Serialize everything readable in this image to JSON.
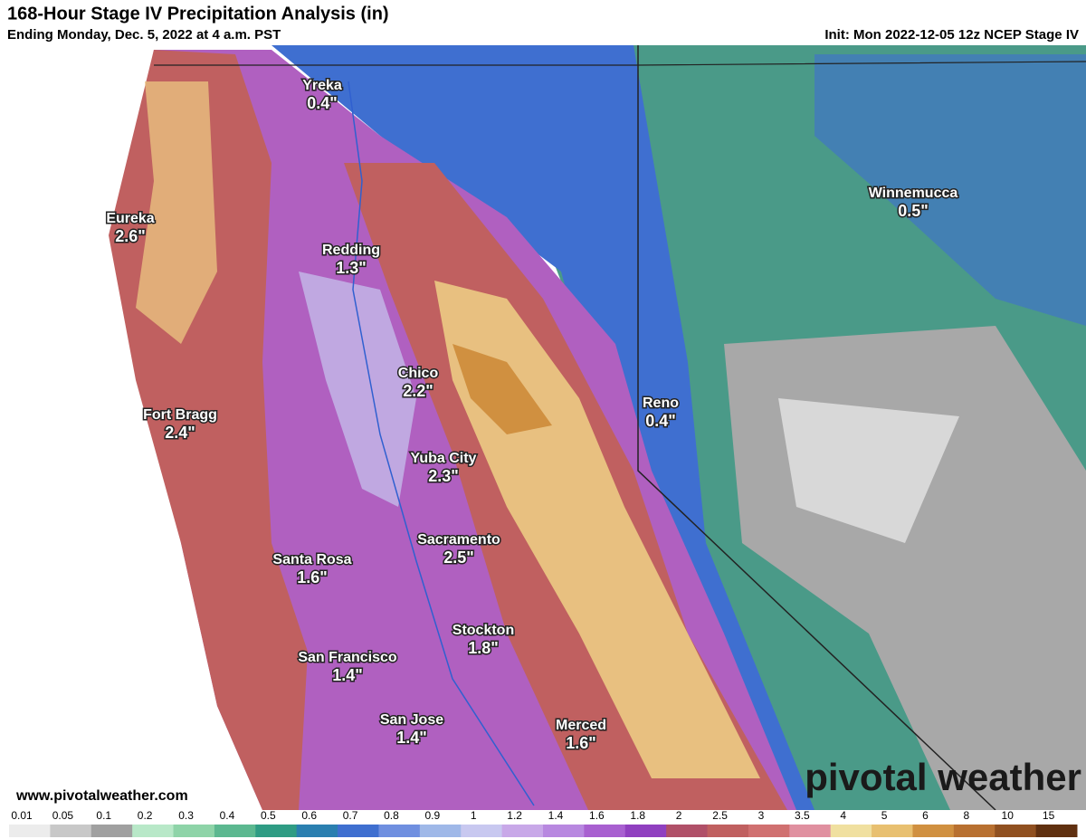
{
  "header": {
    "title": "168-Hour Stage IV Precipitation Analysis (in)",
    "subtitle": "Ending Monday, Dec. 5, 2022 at 4 a.m. PST",
    "init": "Init: Mon 2022-12-05 12z NCEP Stage IV"
  },
  "cities": [
    {
      "name": "Yreka",
      "value": "0.4\""
    },
    {
      "name": "Eureka",
      "value": "2.6\""
    },
    {
      "name": "Redding",
      "value": "1.3\""
    },
    {
      "name": "Winnemucca",
      "value": "0.5\""
    },
    {
      "name": "Chico",
      "value": "2.2\""
    },
    {
      "name": "Reno",
      "value": "0.4\""
    },
    {
      "name": "Fort Bragg",
      "value": "2.4\""
    },
    {
      "name": "Yuba City",
      "value": "2.3\""
    },
    {
      "name": "Sacramento",
      "value": "2.5\""
    },
    {
      "name": "Santa Rosa",
      "value": "1.6\""
    },
    {
      "name": "Stockton",
      "value": "1.8\""
    },
    {
      "name": "San Francisco",
      "value": "1.4\""
    },
    {
      "name": "San Jose",
      "value": "1.4\""
    },
    {
      "name": "Merced",
      "value": "1.6\""
    }
  ],
  "footer": {
    "website": "www.pivotalweather.com",
    "watermark": "pivotal weather"
  },
  "colorbar": {
    "labels": [
      "0.01",
      "0.05",
      "0.1",
      "0.2",
      "0.3",
      "0.4",
      "0.5",
      "0.6",
      "0.7",
      "0.8",
      "0.9",
      "1",
      "1.2",
      "1.4",
      "1.6",
      "1.8",
      "2",
      "2.5",
      "3",
      "3.5",
      "4",
      "5",
      "6",
      "8",
      "10",
      "15"
    ],
    "colors": [
      "#ececec",
      "#c8c8c8",
      "#a0a0a0",
      "#b8e8c8",
      "#8ed4a8",
      "#5cb890",
      "#2f9c84",
      "#2a7fb0",
      "#3f6fd0",
      "#6f8fe0",
      "#9fb8e8",
      "#c8c8f0",
      "#c8a8e8",
      "#b888e0",
      "#a860d0",
      "#9040c0",
      "#b05068",
      "#c06060",
      "#d07070",
      "#e090a0",
      "#f0e0a0",
      "#e8c070",
      "#d09040",
      "#b87030",
      "#905020",
      "#603010"
    ]
  }
}
